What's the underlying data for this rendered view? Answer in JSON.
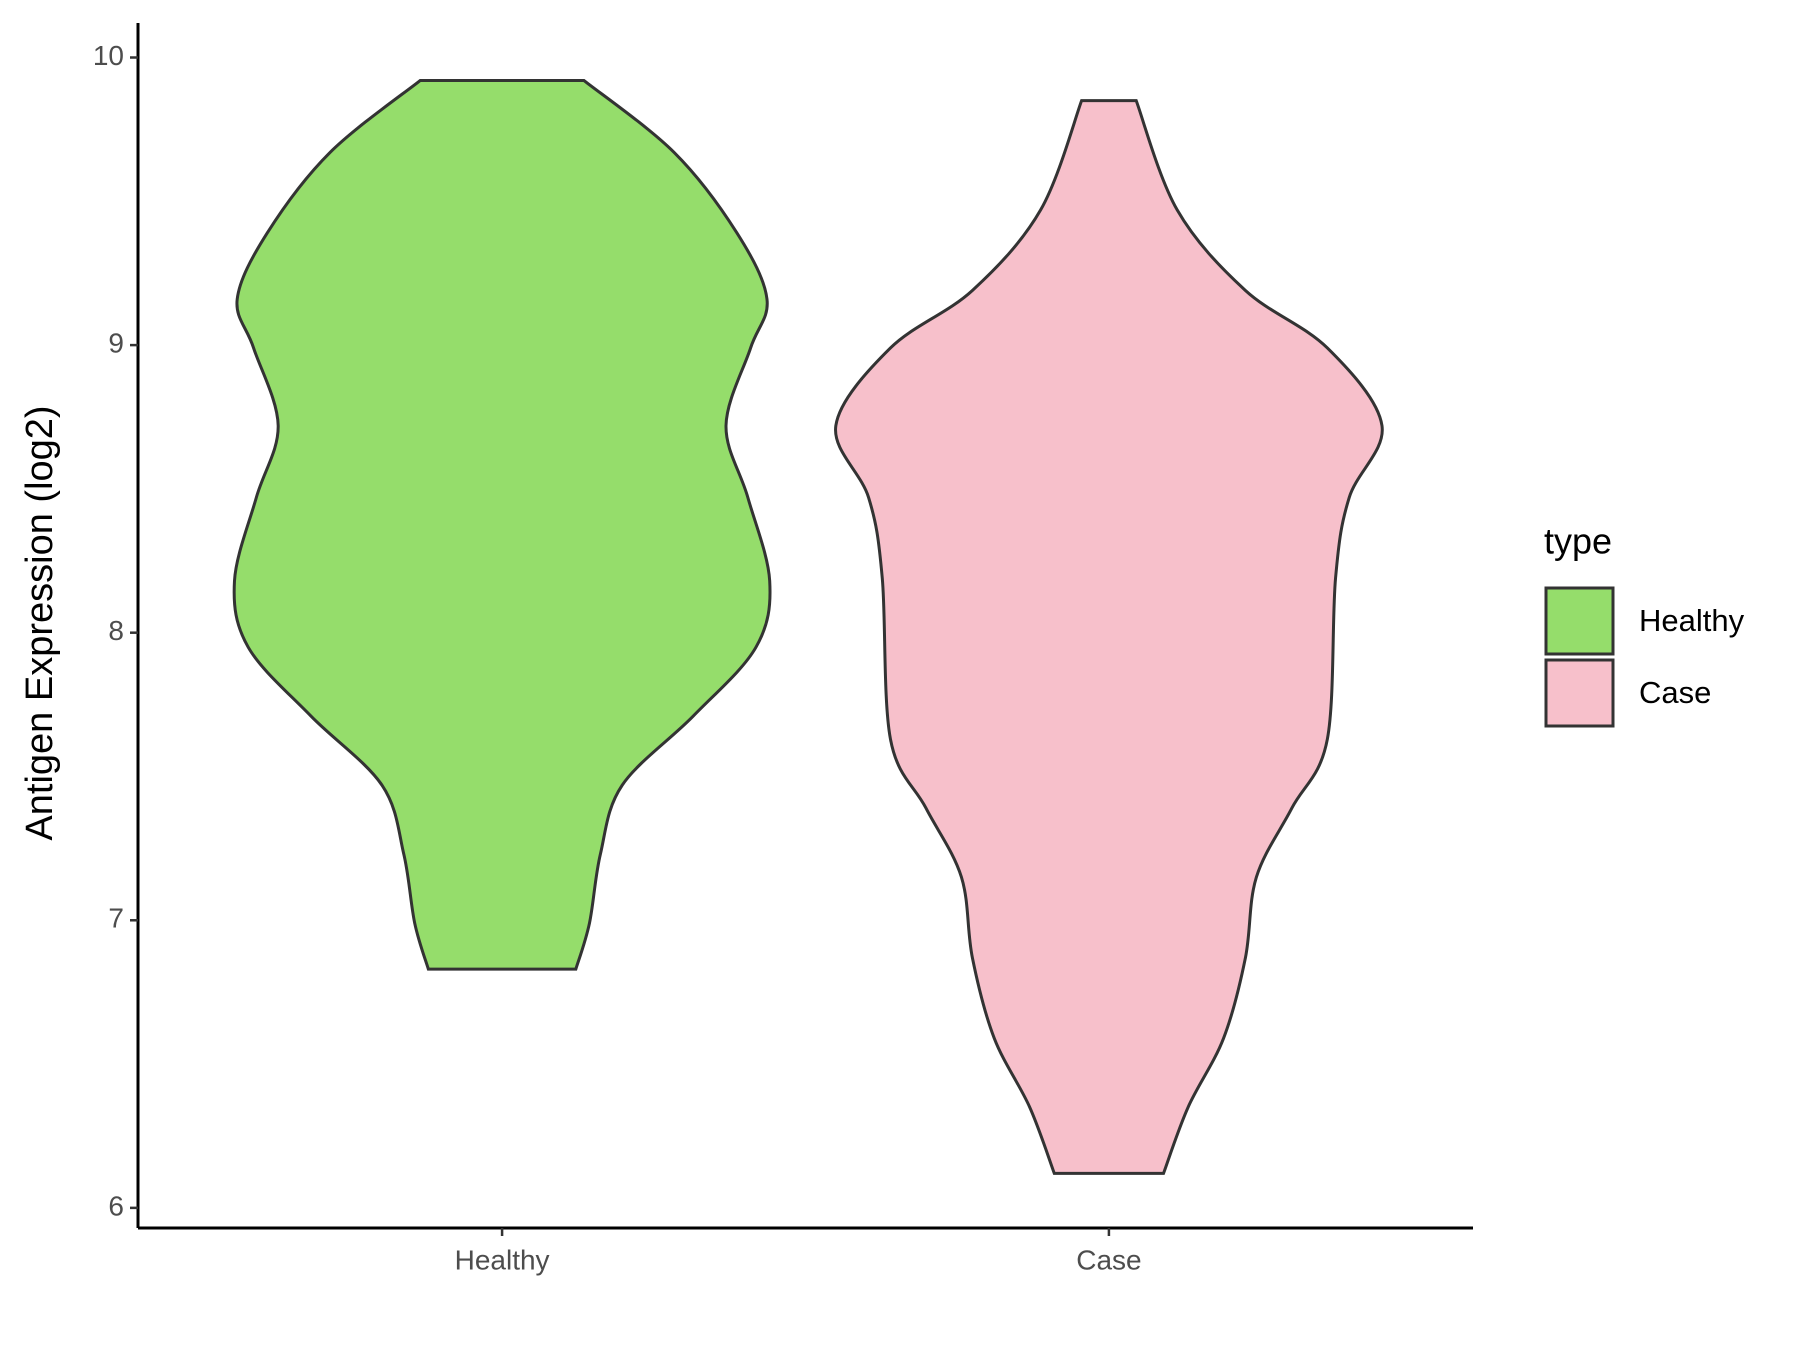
{
  "chart_data": {
    "type": "violin",
    "y_label": "Antigen Expression (log2)",
    "categories": [
      "Healthy",
      "Case"
    ],
    "ylim": [
      5.93,
      10.12
    ],
    "yticks": [
      6,
      7,
      8,
      9,
      10
    ],
    "legend_title": "type",
    "legend_position": "right",
    "series": [
      {
        "name": "Healthy",
        "color": "#95dd6b",
        "y": [
          9.92,
          9.67,
          9.39,
          9.16,
          8.99,
          8.72,
          8.47,
          8.18,
          7.95,
          7.71,
          7.47,
          7.23,
          6.99,
          6.83
        ],
        "width": [
          0.3,
          0.63,
          0.86,
          0.97,
          0.91,
          0.82,
          0.9,
          0.98,
          0.93,
          0.7,
          0.44,
          0.36,
          0.32,
          0.27
        ]
      },
      {
        "name": "Case",
        "color": "#f7c0cb",
        "y": [
          9.85,
          9.47,
          9.19,
          8.99,
          8.72,
          8.47,
          8.19,
          7.63,
          7.39,
          7.15,
          6.87,
          6.59,
          6.35,
          6.12
        ],
        "width": [
          0.1,
          0.25,
          0.5,
          0.8,
          1.0,
          0.88,
          0.83,
          0.8,
          0.67,
          0.54,
          0.5,
          0.42,
          0.29,
          0.2
        ]
      }
    ]
  }
}
